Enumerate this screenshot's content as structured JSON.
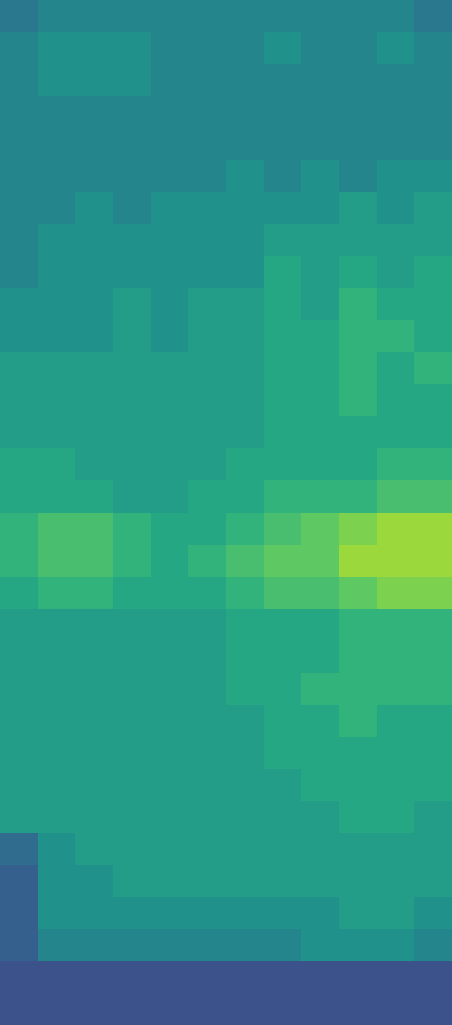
{
  "chart_data": {
    "type": "heatmap",
    "tick_labels": false,
    "zlim": [
      0,
      10
    ],
    "cells": [
      [
        4,
        4.5,
        4.5,
        4.5,
        4.5,
        4.5,
        4.5,
        4.5,
        4.5,
        4.5,
        4.5,
        4
      ],
      [
        4.5,
        5,
        5,
        5,
        4.5,
        4.5,
        4.5,
        5,
        4.5,
        4.5,
        5,
        4.5
      ],
      [
        4.5,
        5,
        5,
        5,
        4.5,
        4.5,
        4.5,
        4.5,
        4.5,
        4.5,
        4.5,
        4.5
      ],
      [
        4.5,
        4.5,
        4.5,
        4.5,
        4.5,
        4.5,
        4.5,
        4.5,
        4.5,
        4.5,
        4.5,
        4.5
      ],
      [
        4.5,
        4.5,
        4.5,
        4.5,
        4.5,
        4.5,
        4.5,
        4.5,
        4.5,
        4.5,
        4.5,
        4.5
      ],
      [
        4.5,
        4.5,
        4.5,
        4.5,
        4.5,
        4.5,
        5,
        4.5,
        5,
        4.5,
        5,
        5
      ],
      [
        4.5,
        4.5,
        5,
        4.5,
        5,
        5,
        5,
        5,
        5,
        5.5,
        5,
        5.5
      ],
      [
        4.5,
        5,
        5,
        5,
        5,
        5,
        5,
        5.5,
        5.5,
        5.5,
        5.5,
        5.5
      ],
      [
        4.5,
        5,
        5,
        5,
        5,
        5,
        5,
        6,
        5.5,
        6,
        5.5,
        6
      ],
      [
        5,
        5,
        5,
        5.5,
        5,
        5.5,
        5.5,
        6,
        5.5,
        6.5,
        6,
        6
      ],
      [
        5,
        5,
        5,
        5.5,
        5,
        5.5,
        5.5,
        6,
        6,
        6.5,
        6.5,
        6
      ],
      [
        5.5,
        5.5,
        5.5,
        5.5,
        5.5,
        5.5,
        5.5,
        6,
        6,
        6.5,
        6,
        6.5
      ],
      [
        5.5,
        5.5,
        5.5,
        5.5,
        5.5,
        5.5,
        5.5,
        6,
        6,
        6.5,
        6,
        6
      ],
      [
        5.5,
        5.5,
        5.5,
        5.5,
        5.5,
        5.5,
        5.5,
        6,
        6,
        6,
        6,
        6
      ],
      [
        6,
        6,
        5.5,
        5.5,
        5.5,
        5.5,
        6,
        6,
        6,
        6,
        6.5,
        6.5
      ],
      [
        6,
        6,
        6,
        5.5,
        5.5,
        6,
        6,
        6.5,
        6.5,
        6.5,
        7,
        7
      ],
      [
        6.5,
        7,
        7,
        6.5,
        6,
        6,
        6.5,
        7,
        7.5,
        8,
        8.5,
        8.5
      ],
      [
        6.5,
        7,
        7,
        6.5,
        6,
        6.5,
        7,
        7.5,
        7.5,
        8.5,
        8.5,
        8.5
      ],
      [
        6,
        6.5,
        6.5,
        6,
        6,
        6,
        6.5,
        7,
        7,
        7.5,
        8,
        8
      ],
      [
        5.5,
        5.5,
        5.5,
        5.5,
        5.5,
        5.5,
        6,
        6,
        6,
        6.5,
        6.5,
        6.5
      ],
      [
        5.5,
        5.5,
        5.5,
        5.5,
        5.5,
        5.5,
        6,
        6,
        6,
        6.5,
        6.5,
        6.5
      ],
      [
        5.5,
        5.5,
        5.5,
        5.5,
        5.5,
        5.5,
        6,
        6,
        6.5,
        6.5,
        6.5,
        6.5
      ],
      [
        5.5,
        5.5,
        5.5,
        5.5,
        5.5,
        5.5,
        5.5,
        6,
        6,
        6.5,
        6,
        6
      ],
      [
        5.5,
        5.5,
        5.5,
        5.5,
        5.5,
        5.5,
        5.5,
        6,
        6,
        6,
        6,
        6
      ],
      [
        5.5,
        5.5,
        5.5,
        5.5,
        5.5,
        5.5,
        5.5,
        5.5,
        6,
        6,
        6,
        6
      ],
      [
        5.5,
        5.5,
        5.5,
        5.5,
        5.5,
        5.5,
        5.5,
        5.5,
        5.5,
        6,
        6,
        5.5
      ],
      [
        3.5,
        5,
        5.5,
        5.5,
        5.5,
        5.5,
        5.5,
        5.5,
        5.5,
        5.5,
        5.5,
        5.5
      ],
      [
        3,
        5,
        5,
        5.5,
        5.5,
        5.5,
        5.5,
        5.5,
        5.5,
        5.5,
        5.5,
        5.5
      ],
      [
        3,
        5,
        5,
        5,
        5,
        5,
        5,
        5,
        5,
        5.5,
        5.5,
        5
      ],
      [
        3,
        4.5,
        4.5,
        4.5,
        4.5,
        4.5,
        4.5,
        4.5,
        5,
        5,
        5,
        4.5
      ],
      [
        2.5,
        2.5,
        2.5,
        2.5,
        2.5,
        2.5,
        2.5,
        2.5,
        2.5,
        2.5,
        2.5,
        2.5
      ],
      [
        2.5,
        2.5,
        2.5,
        2.5,
        2.5,
        2.5,
        2.5,
        2.5,
        2.5,
        2.5,
        2.5,
        2.5
      ]
    ]
  }
}
